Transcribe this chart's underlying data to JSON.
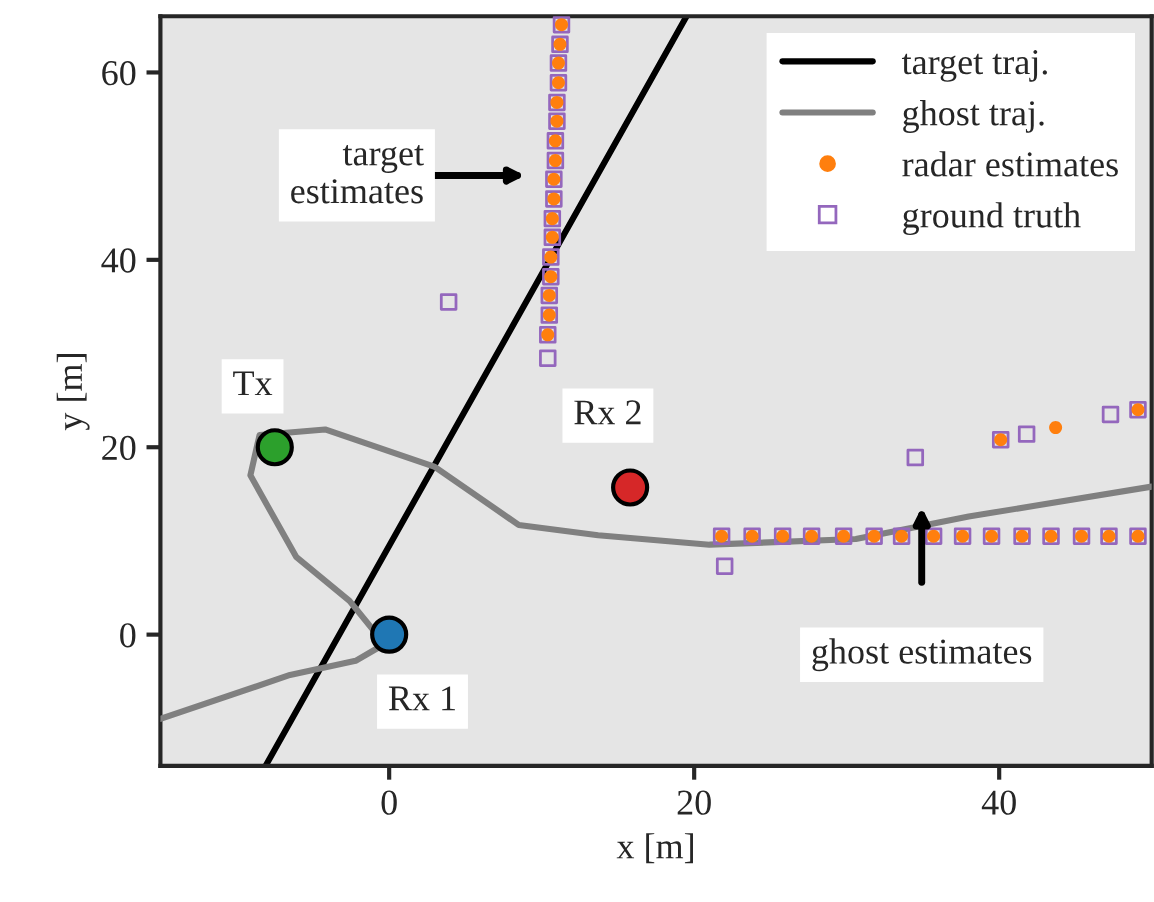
{
  "chart_data": {
    "type": "scatter",
    "xlabel": "x [m]",
    "ylabel": "y [m]",
    "xlim": [
      -15,
      50
    ],
    "ylim": [
      -14,
      66
    ],
    "xticks": [
      0,
      20,
      40
    ],
    "yticks": [
      0,
      20,
      40,
      60
    ],
    "grid": false,
    "legend": "top right",
    "series": [
      {
        "name": "target traj.",
        "type": "line",
        "color": "#000000",
        "marker": "none",
        "line_style": "solid",
        "x": [
          -8.1,
          19.5
        ],
        "values": [
          -14,
          66
        ]
      },
      {
        "name": "ghost traj.",
        "type": "line",
        "color": "#808080",
        "marker": "none",
        "line_style": "solid",
        "x": [
          -15,
          -6.5,
          -2.2,
          -0.3,
          -2.6,
          -6.1,
          -9.1,
          -8.5,
          -4.2,
          3,
          8.5,
          13.7,
          21,
          30.6,
          38,
          50
        ],
        "values": [
          -9,
          -4.3,
          -2.8,
          -1,
          3.6,
          8.3,
          17,
          21.3,
          21.9,
          17.9,
          11.7,
          10.6,
          9.6,
          10.2,
          12.6,
          15.8
        ]
      },
      {
        "name": "radar estimates",
        "type": "scatter",
        "color": "#ff7f0e",
        "marker": "circle",
        "x": [
          10.4,
          10.5,
          10.5,
          10.6,
          10.6,
          10.7,
          10.7,
          10.8,
          10.8,
          10.9,
          10.9,
          11.0,
          11.0,
          11.1,
          11.1,
          11.2,
          11.3,
          21.8,
          23.8,
          25.8,
          27.7,
          29.8,
          31.8,
          33.6,
          35.7,
          37.6,
          39.5,
          41.5,
          43.4,
          45.4,
          47.2,
          49.1,
          40.1,
          43.7,
          49.1
        ],
        "values": [
          32.0,
          34.1,
          36.2,
          38.2,
          40.3,
          42.4,
          44.4,
          46.5,
          48.6,
          50.6,
          52.7,
          54.8,
          56.8,
          58.9,
          61.0,
          63.0,
          65.1,
          10.5,
          10.5,
          10.5,
          10.5,
          10.5,
          10.5,
          10.5,
          10.5,
          10.5,
          10.5,
          10.5,
          10.5,
          10.5,
          10.5,
          10.5,
          20.8,
          22.1,
          24.0
        ]
      },
      {
        "name": "ground truth",
        "type": "scatter",
        "color": "#9467bd",
        "marker": "square",
        "x": [
          10.4,
          10.5,
          10.5,
          10.6,
          10.6,
          10.7,
          10.7,
          10.8,
          10.8,
          10.9,
          10.9,
          11.0,
          11.0,
          11.1,
          11.1,
          11.2,
          11.3,
          10.4,
          3.9,
          21.8,
          23.8,
          25.8,
          27.7,
          29.8,
          31.8,
          33.6,
          35.7,
          37.6,
          39.5,
          41.5,
          43.4,
          45.4,
          47.2,
          49.1,
          22.0,
          34.5,
          40.1,
          41.8,
          47.3,
          49.1
        ],
        "values": [
          32.0,
          34.1,
          36.2,
          38.2,
          40.3,
          42.4,
          44.4,
          46.5,
          48.6,
          50.6,
          52.7,
          54.8,
          56.8,
          58.9,
          61.0,
          63.0,
          65.1,
          29.5,
          35.5,
          10.5,
          10.5,
          10.5,
          10.5,
          10.5,
          10.5,
          10.5,
          10.5,
          10.5,
          10.5,
          10.5,
          10.5,
          10.5,
          10.5,
          10.5,
          7.3,
          18.9,
          20.8,
          21.4,
          23.5,
          24.0
        ]
      },
      {
        "type": "scatter",
        "marker": "circle",
        "colors": [
          "#2ca02c",
          "#1f77b4",
          "#d62728"
        ],
        "x": [
          -7.5,
          0,
          15.8
        ],
        "values": [
          20,
          0,
          15.7
        ]
      }
    ],
    "annotations": [
      {
        "text": "Tx",
        "x": -7.5,
        "y": 20
      },
      {
        "text": "Rx 1",
        "x": 0,
        "y": 0
      },
      {
        "text": "Rx 2",
        "x": 15.8,
        "y": 15.7
      },
      "target\nestimates",
      "ghost estimates"
    ]
  }
}
